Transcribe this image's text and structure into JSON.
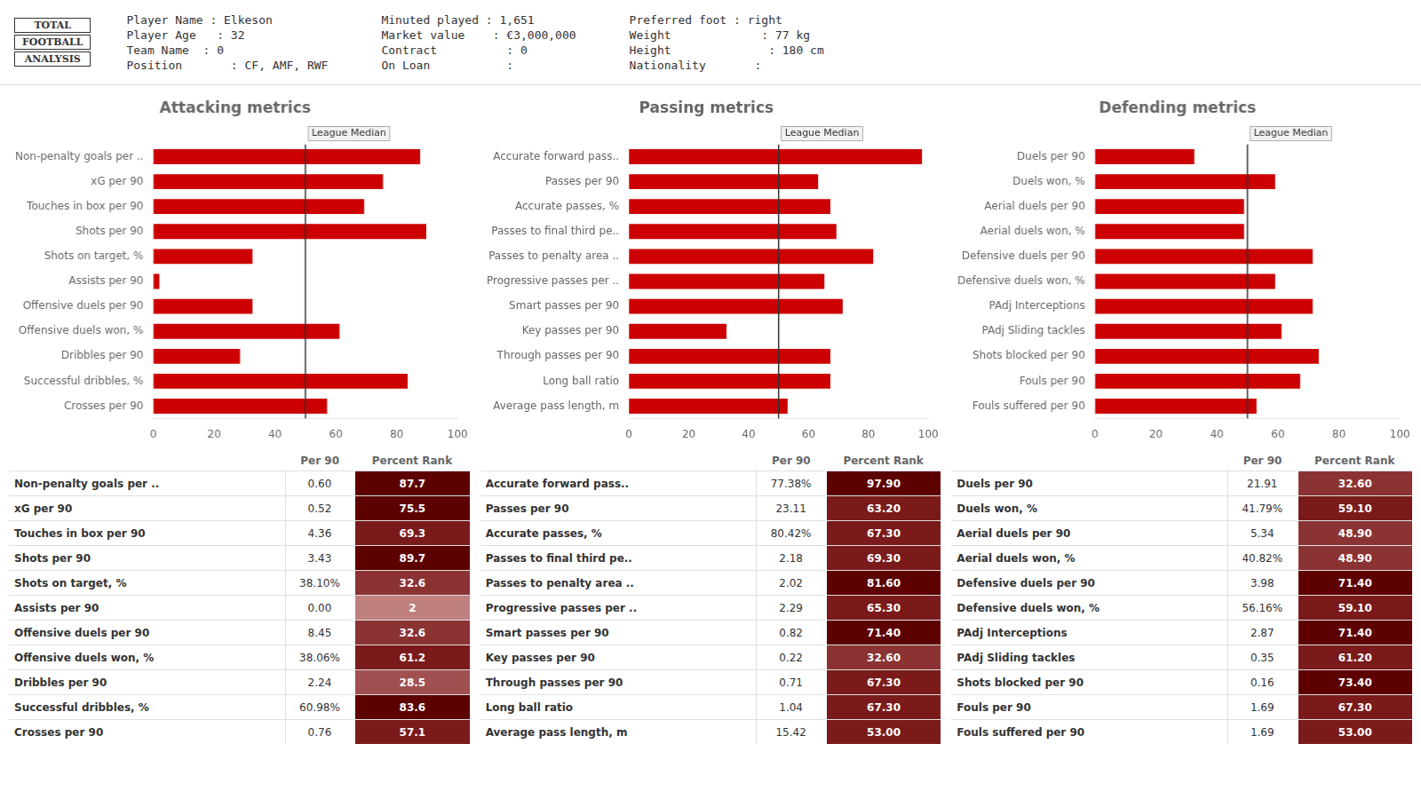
{
  "chart_data": [
    {
      "type": "text",
      "annotations": [
        "TOTAL",
        "FOOTBALL",
        "ANALYSIS"
      ]
    },
    {
      "type": "text",
      "annotations": [
        "Player Name : Elkeson",
        "Player Age   : 32",
        "Team Name  : 0",
        "Position       : CF, AMF, RWF",
        "Minuted played : 1,651",
        "Market value    : €3,000,000",
        "Contract          : 0",
        "On Loan           :",
        "Preferred foot : right",
        "Weight             : 77 kg",
        "Height              : 180 cm",
        "Nationality       :"
      ]
    },
    {
      "type": "bar",
      "orientation": "horizontal",
      "title": "Attacking metrics",
      "categories": [
        "Non-penalty goals per ..",
        "xG per 90",
        "Touches in box per 90",
        "Shots per 90",
        "Shots on target, %",
        "Assists per 90",
        "Offensive duels per 90",
        "Offensive duels won, %",
        "Dribbles per 90",
        "Successful dribbles, %",
        "Crosses per 90"
      ],
      "values": [
        87.7,
        75.5,
        69.3,
        89.7,
        32.6,
        2.0,
        32.6,
        61.2,
        28.5,
        83.6,
        57.1
      ],
      "color": "#cc0000",
      "xlim": [
        0,
        100
      ],
      "xticks": [
        0,
        20,
        40,
        60,
        80,
        100
      ],
      "grid": false,
      "annotations": [
        {
          "x": 50,
          "text": "League Median"
        }
      ]
    },
    {
      "type": "table",
      "categories": [
        "Non-penalty goals per ..",
        "xG per 90",
        "Touches in box per 90",
        "Shots per 90",
        "Shots on target, %",
        "Assists per 90",
        "Offensive duels per 90",
        "Offensive duels won, %",
        "Dribbles per 90",
        "Successful dribbles, %",
        "Crosses per 90"
      ],
      "columns": [
        "Per 90",
        "Percent Rank"
      ],
      "cells": [
        [
          "0.60",
          "87.7"
        ],
        [
          "0.52",
          "75.5"
        ],
        [
          "4.36",
          "69.3"
        ],
        [
          "3.43",
          "89.7"
        ],
        [
          "38.10%",
          "32.6"
        ],
        [
          "0.00",
          "2"
        ],
        [
          "8.45",
          "32.6"
        ],
        [
          "38.06%",
          "61.2"
        ],
        [
          "2.24",
          "28.5"
        ],
        [
          "60.98%",
          "83.6"
        ],
        [
          "0.76",
          "57.1"
        ]
      ],
      "colors": [
        "#5c0000",
        "#5c0000",
        "#7a1a1a",
        "#5c0000",
        "#8b3333",
        "#c08080",
        "#8b3333",
        "#7a1a1a",
        "#a05050",
        "#5c0000",
        "#7a1a1a"
      ]
    },
    {
      "type": "bar",
      "orientation": "horizontal",
      "title": "Passing metrics",
      "categories": [
        "Accurate forward pass..",
        "Passes per 90",
        "Accurate passes, %",
        "Passes to final third pe..",
        "Passes to penalty area ..",
        "Progressive passes per ..",
        "Smart passes per 90",
        "Key passes per 90",
        "Through passes per 90",
        "Long ball ratio",
        "Average pass length, m"
      ],
      "values": [
        97.9,
        63.2,
        67.3,
        69.3,
        81.6,
        65.3,
        71.4,
        32.6,
        67.3,
        67.3,
        53.0
      ],
      "color": "#cc0000",
      "xlim": [
        0,
        100
      ],
      "xticks": [
        0,
        20,
        40,
        60,
        80,
        100
      ],
      "grid": false,
      "annotations": [
        {
          "x": 50,
          "text": "League Median"
        }
      ]
    },
    {
      "type": "table",
      "categories": [
        "Accurate forward pass..",
        "Passes per 90",
        "Accurate passes, %",
        "Passes to final third pe..",
        "Passes to penalty area ..",
        "Progressive passes per ..",
        "Smart passes per 90",
        "Key passes per 90",
        "Through passes per 90",
        "Long ball ratio",
        "Average pass length, m"
      ],
      "columns": [
        "Per 90",
        "Percent Rank"
      ],
      "cells": [
        [
          "77.38%",
          "97.90"
        ],
        [
          "23.11",
          "63.20"
        ],
        [
          "80.42%",
          "67.30"
        ],
        [
          "2.18",
          "69.30"
        ],
        [
          "2.02",
          "81.60"
        ],
        [
          "2.29",
          "65.30"
        ],
        [
          "0.82",
          "71.40"
        ],
        [
          "0.22",
          "32.60"
        ],
        [
          "0.71",
          "67.30"
        ],
        [
          "1.04",
          "67.30"
        ],
        [
          "15.42",
          "53.00"
        ]
      ],
      "colors": [
        "#5c0000",
        "#7a1a1a",
        "#7a1a1a",
        "#7a1a1a",
        "#5c0000",
        "#7a1a1a",
        "#5c0000",
        "#8b3333",
        "#7a1a1a",
        "#7a1a1a",
        "#7a1a1a"
      ]
    },
    {
      "type": "bar",
      "orientation": "horizontal",
      "title": "Defending metrics",
      "categories": [
        "Duels per 90",
        "Duels won, %",
        "Aerial duels per 90",
        "Aerial duels won, %",
        "Defensive duels per 90",
        "Defensive duels won, %",
        "PAdj Interceptions",
        "PAdj Sliding tackles",
        "Shots blocked per 90",
        "Fouls per 90",
        "Fouls suffered per 90"
      ],
      "values": [
        32.6,
        59.1,
        48.9,
        48.9,
        71.4,
        59.1,
        71.4,
        61.2,
        73.4,
        67.3,
        53.0
      ],
      "color": "#cc0000",
      "xlim": [
        0,
        100
      ],
      "xticks": [
        0,
        20,
        40,
        60,
        80,
        100
      ],
      "grid": false,
      "annotations": [
        {
          "x": 50,
          "text": "League Median"
        }
      ]
    },
    {
      "type": "table",
      "categories": [
        "Duels per 90",
        "Duels won, %",
        "Aerial duels per 90",
        "Aerial duels won, %",
        "Defensive duels per 90",
        "Defensive duels won, %",
        "PAdj Interceptions",
        "PAdj Sliding tackles",
        "Shots blocked per 90",
        "Fouls per 90",
        "Fouls suffered per 90"
      ],
      "columns": [
        "Per 90",
        "Percent Rank"
      ],
      "cells": [
        [
          "21.91",
          "32.60"
        ],
        [
          "41.79%",
          "59.10"
        ],
        [
          "5.34",
          "48.90"
        ],
        [
          "40.82%",
          "48.90"
        ],
        [
          "3.98",
          "71.40"
        ],
        [
          "56.16%",
          "59.10"
        ],
        [
          "2.87",
          "71.40"
        ],
        [
          "0.35",
          "61.20"
        ],
        [
          "0.16",
          "73.40"
        ],
        [
          "1.69",
          "67.30"
        ],
        [
          "1.69",
          "53.00"
        ]
      ],
      "colors": [
        "#8b3333",
        "#7a1a1a",
        "#8b3333",
        "#8b3333",
        "#5c0000",
        "#7a1a1a",
        "#5c0000",
        "#7a1a1a",
        "#5c0000",
        "#7a1a1a",
        "#7a1a1a"
      ]
    }
  ]
}
